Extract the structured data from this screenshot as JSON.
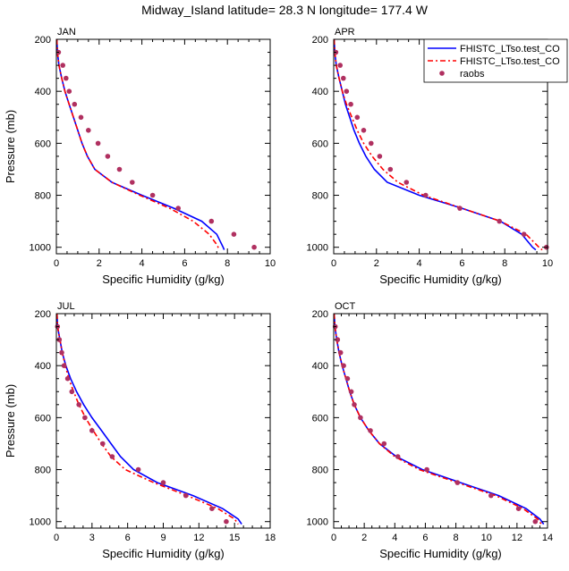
{
  "title": "Midway_Island  latitude= 28.3 N longitude= 177.4 W",
  "colors": {
    "model1": "#0000ff",
    "model2": "#ff0000",
    "obs": "#b03060"
  },
  "chart_data": [
    {
      "type": "line",
      "panel_label": "JAN",
      "xlabel": "Specific Humidity (g/kg)",
      "ylabel": "Pressure (mb)",
      "xlim": [
        0,
        10
      ],
      "ylim": [
        1025,
        200
      ],
      "x_ticks": [
        0,
        2,
        4,
        6,
        8,
        10
      ],
      "y_ticks": [
        200,
        400,
        600,
        800,
        1000
      ],
      "legend": null,
      "series": [
        {
          "name": "",
          "style": "solid",
          "color": "#0000ff",
          "points": [
            [
              0.02,
              200
            ],
            [
              0.05,
              250
            ],
            [
              0.12,
              300
            ],
            [
              0.25,
              350
            ],
            [
              0.4,
              400
            ],
            [
              0.6,
              450
            ],
            [
              0.8,
              500
            ],
            [
              1.0,
              550
            ],
            [
              1.2,
              600
            ],
            [
              1.45,
              650
            ],
            [
              1.8,
              700
            ],
            [
              2.6,
              750
            ],
            [
              4.0,
              800
            ],
            [
              5.5,
              850
            ],
            [
              6.8,
              900
            ],
            [
              7.5,
              950
            ],
            [
              7.8,
              1000
            ],
            [
              7.85,
              1010
            ]
          ]
        },
        {
          "name": "",
          "style": "dashed",
          "color": "#ff0000",
          "points": [
            [
              0.02,
              200
            ],
            [
              0.05,
              250
            ],
            [
              0.12,
              300
            ],
            [
              0.25,
              350
            ],
            [
              0.4,
              400
            ],
            [
              0.6,
              450
            ],
            [
              0.8,
              500
            ],
            [
              1.0,
              550
            ],
            [
              1.2,
              600
            ],
            [
              1.45,
              650
            ],
            [
              1.8,
              700
            ],
            [
              2.6,
              750
            ],
            [
              3.9,
              800
            ],
            [
              5.3,
              850
            ],
            [
              6.4,
              900
            ],
            [
              7.15,
              950
            ],
            [
              7.5,
              990
            ],
            [
              7.6,
              1005
            ]
          ]
        }
      ],
      "obs": {
        "name": "",
        "points": [
          [
            0.1,
            250
          ],
          [
            0.3,
            300
          ],
          [
            0.45,
            350
          ],
          [
            0.6,
            400
          ],
          [
            0.85,
            450
          ],
          [
            1.15,
            500
          ],
          [
            1.5,
            550
          ],
          [
            1.95,
            600
          ],
          [
            2.4,
            650
          ],
          [
            2.95,
            700
          ],
          [
            3.55,
            750
          ],
          [
            4.5,
            800
          ],
          [
            5.7,
            850
          ],
          [
            7.25,
            900
          ],
          [
            8.3,
            950
          ],
          [
            9.25,
            1000
          ]
        ]
      }
    },
    {
      "type": "line",
      "panel_label": "APR",
      "xlabel": "Specific Humidity (g/kg)",
      "ylabel": "",
      "xlim": [
        0,
        10
      ],
      "ylim": [
        1025,
        200
      ],
      "x_ticks": [
        0,
        2,
        4,
        6,
        8,
        10
      ],
      "y_ticks": [
        200,
        400,
        600,
        800,
        1000
      ],
      "legend": {
        "position": "top-right",
        "entries": [
          "FHISTC_LTso.test_CO",
          "FHISTC_LTso.test_CO",
          "raobs"
        ]
      },
      "series": [
        {
          "name": "FHISTC_LTso.test_CO",
          "style": "solid",
          "color": "#0000ff",
          "points": [
            [
              0.02,
              200
            ],
            [
              0.05,
              250
            ],
            [
              0.12,
              300
            ],
            [
              0.25,
              350
            ],
            [
              0.4,
              400
            ],
            [
              0.55,
              450
            ],
            [
              0.75,
              500
            ],
            [
              0.95,
              550
            ],
            [
              1.2,
              600
            ],
            [
              1.5,
              650
            ],
            [
              1.9,
              700
            ],
            [
              2.5,
              750
            ],
            [
              4.0,
              800
            ],
            [
              6.0,
              850
            ],
            [
              7.8,
              900
            ],
            [
              8.8,
              950
            ],
            [
              9.3,
              1000
            ],
            [
              9.45,
              1010
            ]
          ]
        },
        {
          "name": "FHISTC_LTso.test_CO",
          "style": "dashed",
          "color": "#ff0000",
          "points": [
            [
              0.02,
              200
            ],
            [
              0.05,
              250
            ],
            [
              0.12,
              300
            ],
            [
              0.25,
              350
            ],
            [
              0.4,
              400
            ],
            [
              0.6,
              450
            ],
            [
              0.85,
              500
            ],
            [
              1.1,
              550
            ],
            [
              1.4,
              600
            ],
            [
              1.8,
              650
            ],
            [
              2.3,
              700
            ],
            [
              3.0,
              750
            ],
            [
              4.2,
              800
            ],
            [
              6.0,
              850
            ],
            [
              7.8,
              900
            ],
            [
              9.0,
              950
            ],
            [
              9.6,
              1000
            ],
            [
              9.75,
              1010
            ]
          ]
        }
      ],
      "obs": {
        "name": "raobs",
        "points": [
          [
            0.1,
            250
          ],
          [
            0.3,
            300
          ],
          [
            0.45,
            350
          ],
          [
            0.6,
            400
          ],
          [
            0.8,
            450
          ],
          [
            1.1,
            500
          ],
          [
            1.4,
            550
          ],
          [
            1.75,
            600
          ],
          [
            2.15,
            650
          ],
          [
            2.65,
            700
          ],
          [
            3.4,
            750
          ],
          [
            4.3,
            800
          ],
          [
            5.9,
            850
          ],
          [
            7.75,
            900
          ],
          [
            8.9,
            950
          ],
          [
            9.95,
            1000
          ]
        ]
      }
    },
    {
      "type": "line",
      "panel_label": "JUL",
      "xlabel": "Specific Humidity (g/kg)",
      "ylabel": "Pressure (mb)",
      "xlim": [
        0,
        18
      ],
      "ylim": [
        1025,
        200
      ],
      "x_ticks": [
        0,
        3,
        6,
        9,
        12,
        15,
        18
      ],
      "y_ticks": [
        200,
        400,
        600,
        800,
        1000
      ],
      "legend": null,
      "series": [
        {
          "name": "",
          "style": "solid",
          "color": "#0000ff",
          "points": [
            [
              0.05,
              200
            ],
            [
              0.1,
              250
            ],
            [
              0.3,
              300
            ],
            [
              0.5,
              350
            ],
            [
              0.8,
              400
            ],
            [
              1.2,
              450
            ],
            [
              1.7,
              500
            ],
            [
              2.3,
              550
            ],
            [
              3.0,
              600
            ],
            [
              3.8,
              650
            ],
            [
              4.6,
              700
            ],
            [
              5.4,
              750
            ],
            [
              6.5,
              800
            ],
            [
              8.5,
              850
            ],
            [
              11.5,
              900
            ],
            [
              14.0,
              950
            ],
            [
              15.3,
              990
            ],
            [
              15.6,
              1010
            ]
          ]
        },
        {
          "name": "",
          "style": "dashed",
          "color": "#ff0000",
          "points": [
            [
              0.05,
              200
            ],
            [
              0.1,
              250
            ],
            [
              0.3,
              300
            ],
            [
              0.5,
              350
            ],
            [
              0.75,
              400
            ],
            [
              1.05,
              450
            ],
            [
              1.45,
              500
            ],
            [
              1.9,
              550
            ],
            [
              2.45,
              600
            ],
            [
              3.1,
              650
            ],
            [
              3.8,
              700
            ],
            [
              4.6,
              750
            ],
            [
              5.8,
              800
            ],
            [
              8.2,
              850
            ],
            [
              11.0,
              900
            ],
            [
              13.6,
              950
            ],
            [
              15.0,
              990
            ],
            [
              15.3,
              1010
            ]
          ]
        }
      ],
      "obs": {
        "name": "",
        "points": [
          [
            0.1,
            250
          ],
          [
            0.25,
            300
          ],
          [
            0.45,
            350
          ],
          [
            0.65,
            400
          ],
          [
            0.95,
            450
          ],
          [
            1.3,
            500
          ],
          [
            1.9,
            550
          ],
          [
            2.4,
            600
          ],
          [
            3.0,
            650
          ],
          [
            3.9,
            700
          ],
          [
            4.7,
            750
          ],
          [
            6.9,
            800
          ],
          [
            9.0,
            850
          ],
          [
            10.9,
            900
          ],
          [
            13.1,
            950
          ],
          [
            14.3,
            1000
          ]
        ]
      }
    },
    {
      "type": "line",
      "panel_label": "OCT",
      "xlabel": "Specific Humidity (g/kg)",
      "ylabel": "",
      "xlim": [
        0,
        14
      ],
      "ylim": [
        1025,
        200
      ],
      "x_ticks": [
        0,
        2,
        4,
        6,
        8,
        10,
        12,
        14
      ],
      "y_ticks": [
        200,
        400,
        600,
        800,
        1000
      ],
      "legend": null,
      "series": [
        {
          "name": "",
          "style": "solid",
          "color": "#0000ff",
          "points": [
            [
              0.03,
              200
            ],
            [
              0.08,
              250
            ],
            [
              0.2,
              300
            ],
            [
              0.35,
              350
            ],
            [
              0.55,
              400
            ],
            [
              0.8,
              450
            ],
            [
              1.05,
              500
            ],
            [
              1.35,
              550
            ],
            [
              1.75,
              600
            ],
            [
              2.3,
              650
            ],
            [
              3.0,
              700
            ],
            [
              4.1,
              750
            ],
            [
              5.8,
              800
            ],
            [
              8.3,
              850
            ],
            [
              10.8,
              900
            ],
            [
              12.6,
              950
            ],
            [
              13.5,
              990
            ],
            [
              13.75,
              1010
            ]
          ]
        },
        {
          "name": "",
          "style": "dashed",
          "color": "#ff0000",
          "points": [
            [
              0.03,
              200
            ],
            [
              0.08,
              250
            ],
            [
              0.2,
              300
            ],
            [
              0.35,
              350
            ],
            [
              0.55,
              400
            ],
            [
              0.8,
              450
            ],
            [
              1.05,
              500
            ],
            [
              1.35,
              550
            ],
            [
              1.75,
              600
            ],
            [
              2.3,
              650
            ],
            [
              3.0,
              700
            ],
            [
              4.0,
              750
            ],
            [
              5.6,
              800
            ],
            [
              8.1,
              850
            ],
            [
              10.6,
              900
            ],
            [
              12.4,
              950
            ],
            [
              13.35,
              990
            ],
            [
              13.6,
              1010
            ]
          ]
        }
      ],
      "obs": {
        "name": "",
        "points": [
          [
            0.1,
            250
          ],
          [
            0.25,
            300
          ],
          [
            0.45,
            350
          ],
          [
            0.65,
            400
          ],
          [
            0.9,
            450
          ],
          [
            1.15,
            500
          ],
          [
            1.35,
            550
          ],
          [
            1.75,
            600
          ],
          [
            2.4,
            650
          ],
          [
            3.3,
            700
          ],
          [
            4.2,
            750
          ],
          [
            6.1,
            800
          ],
          [
            8.1,
            850
          ],
          [
            10.3,
            900
          ],
          [
            12.1,
            950
          ],
          [
            13.2,
            1000
          ]
        ]
      }
    }
  ]
}
